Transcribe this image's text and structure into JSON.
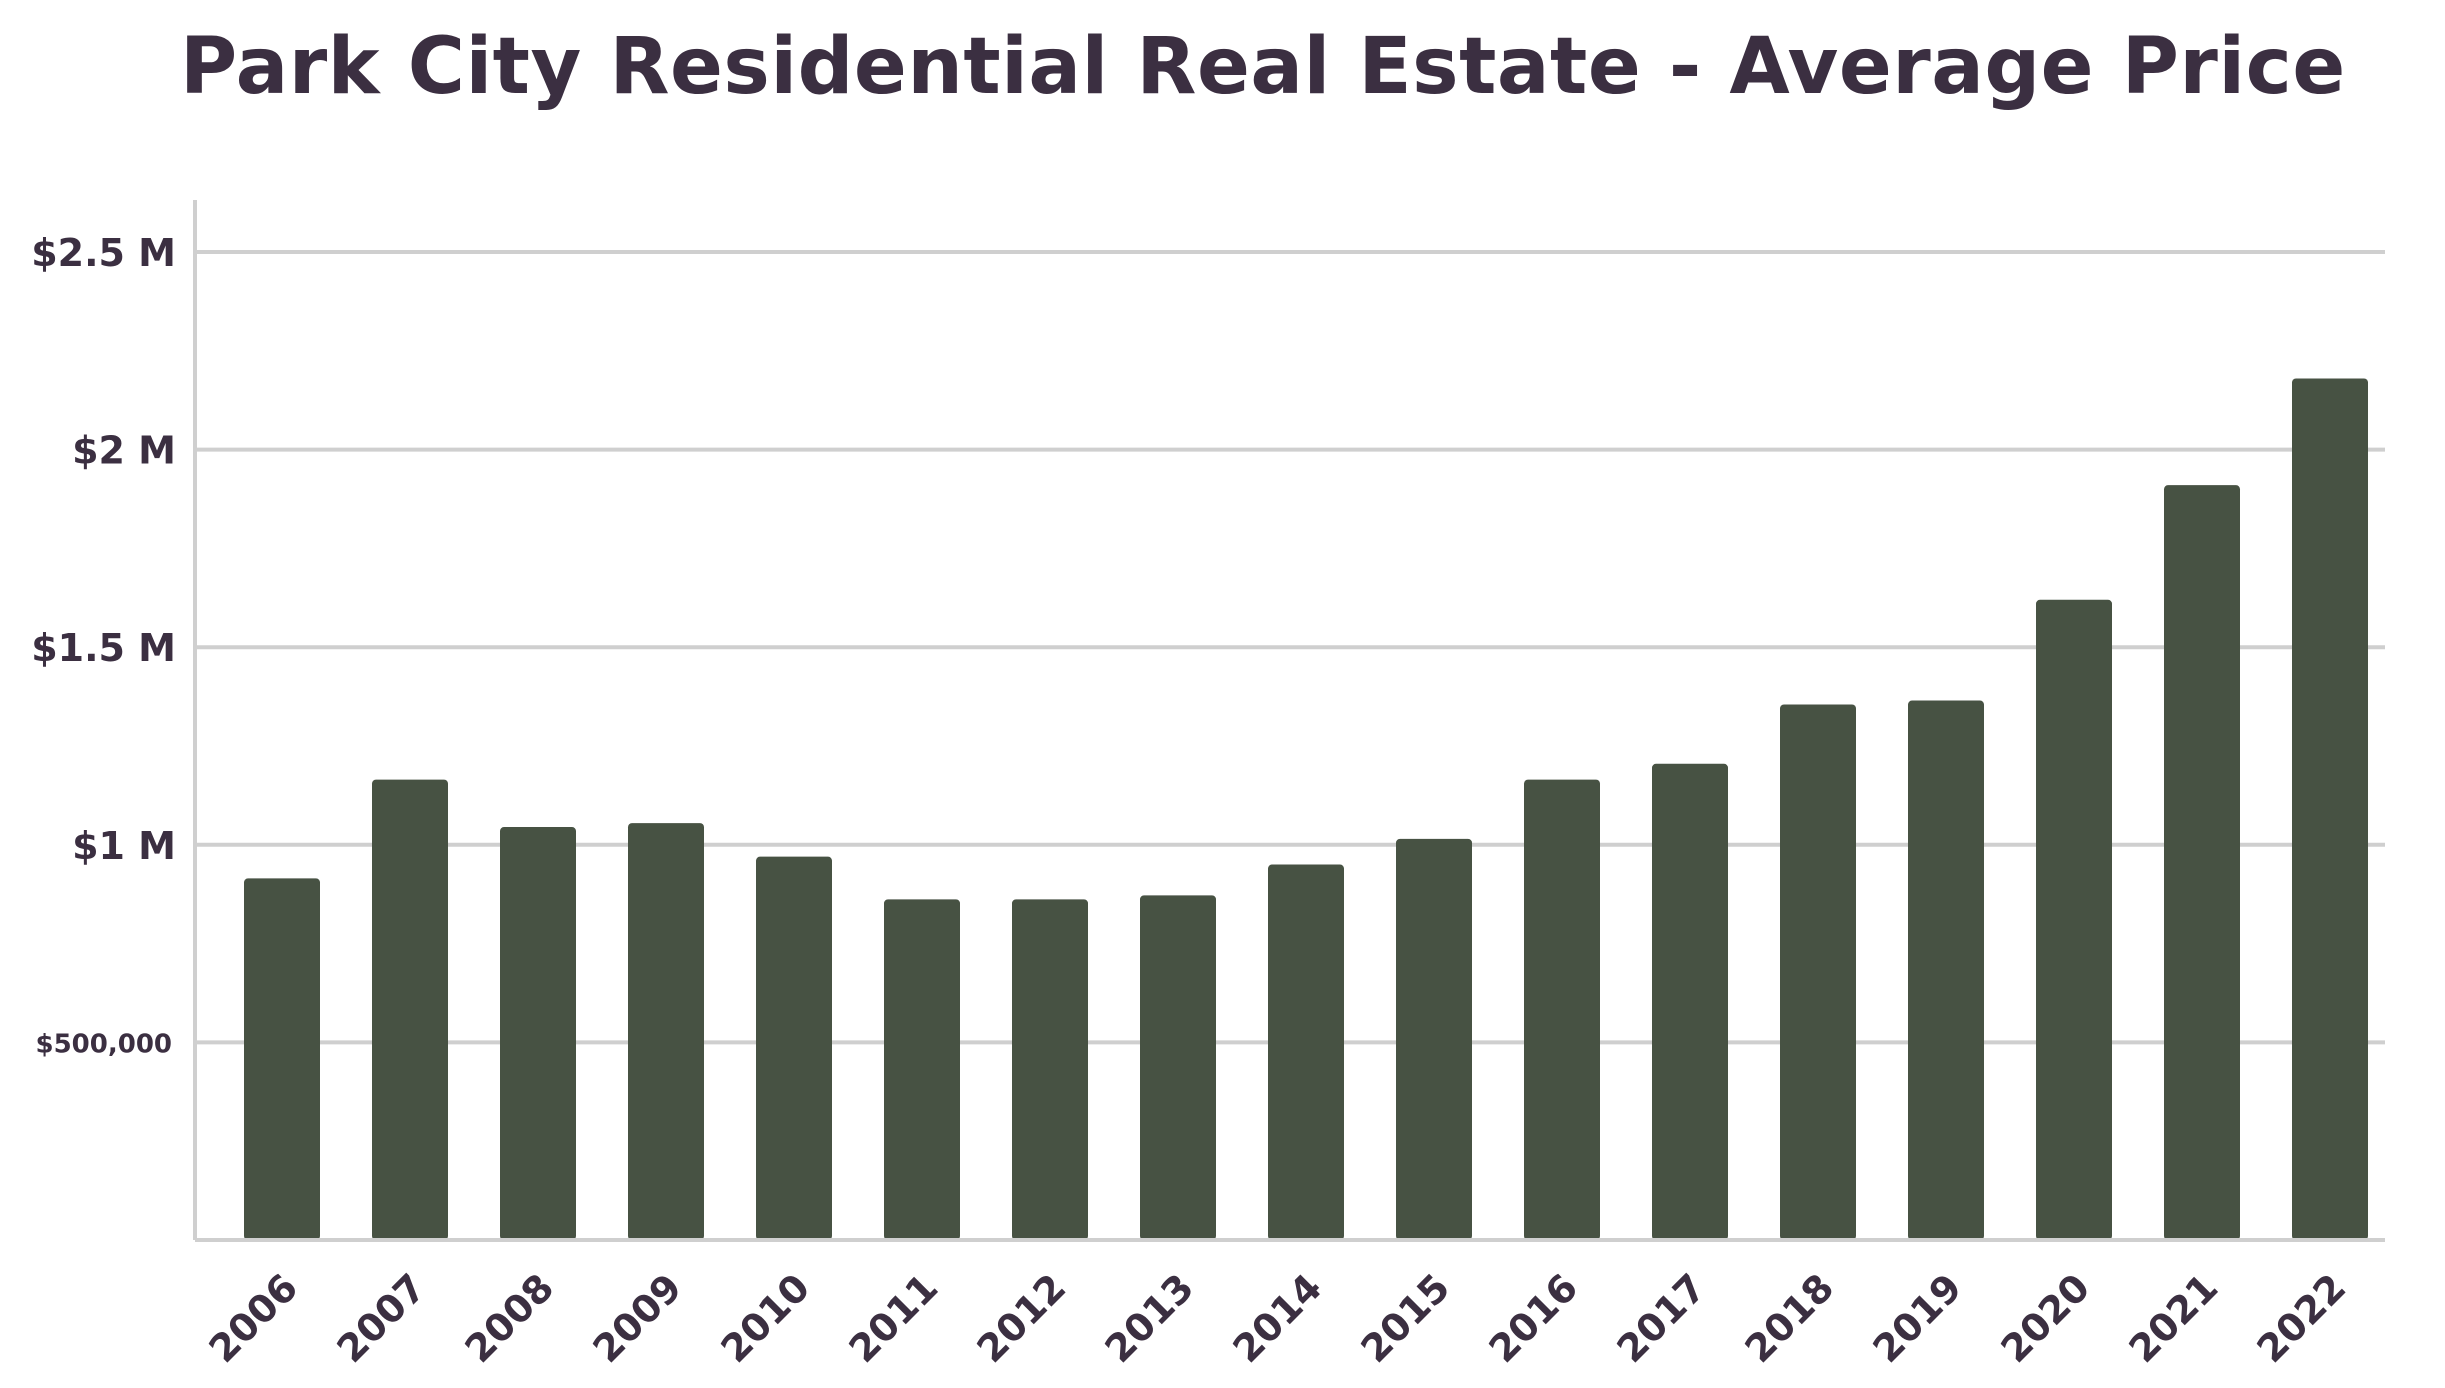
{
  "chart_data": {
    "type": "bar",
    "title": "Park City Residential Real Estate - Average Price",
    "xlabel": "",
    "ylabel": "",
    "categories": [
      "2006",
      "2007",
      "2008",
      "2009",
      "2010",
      "2011",
      "2012",
      "2013",
      "2014",
      "2015",
      "2016",
      "2017",
      "2018",
      "2019",
      "2020",
      "2021",
      "2022"
    ],
    "values": [
      915000,
      1165000,
      1045000,
      1055000,
      970000,
      862000,
      862000,
      872000,
      950000,
      1015000,
      1165000,
      1205000,
      1355000,
      1365000,
      1620000,
      1910000,
      2180000
    ],
    "ylim": [
      0,
      2630000
    ],
    "yticks": [
      {
        "value": 500000,
        "label": "$500,000"
      },
      {
        "value": 1000000,
        "label": "$1 M"
      },
      {
        "value": 1500000,
        "label": "$1.5 M"
      },
      {
        "value": 2000000,
        "label": "$2 M"
      },
      {
        "value": 2500000,
        "label": "$2.5 M"
      }
    ],
    "grid": true,
    "legend": "none",
    "colors": {
      "bar": "#475243",
      "grid": "#cfcfcf",
      "axis": "#cfcfcf",
      "text": "#3b2f41"
    }
  }
}
